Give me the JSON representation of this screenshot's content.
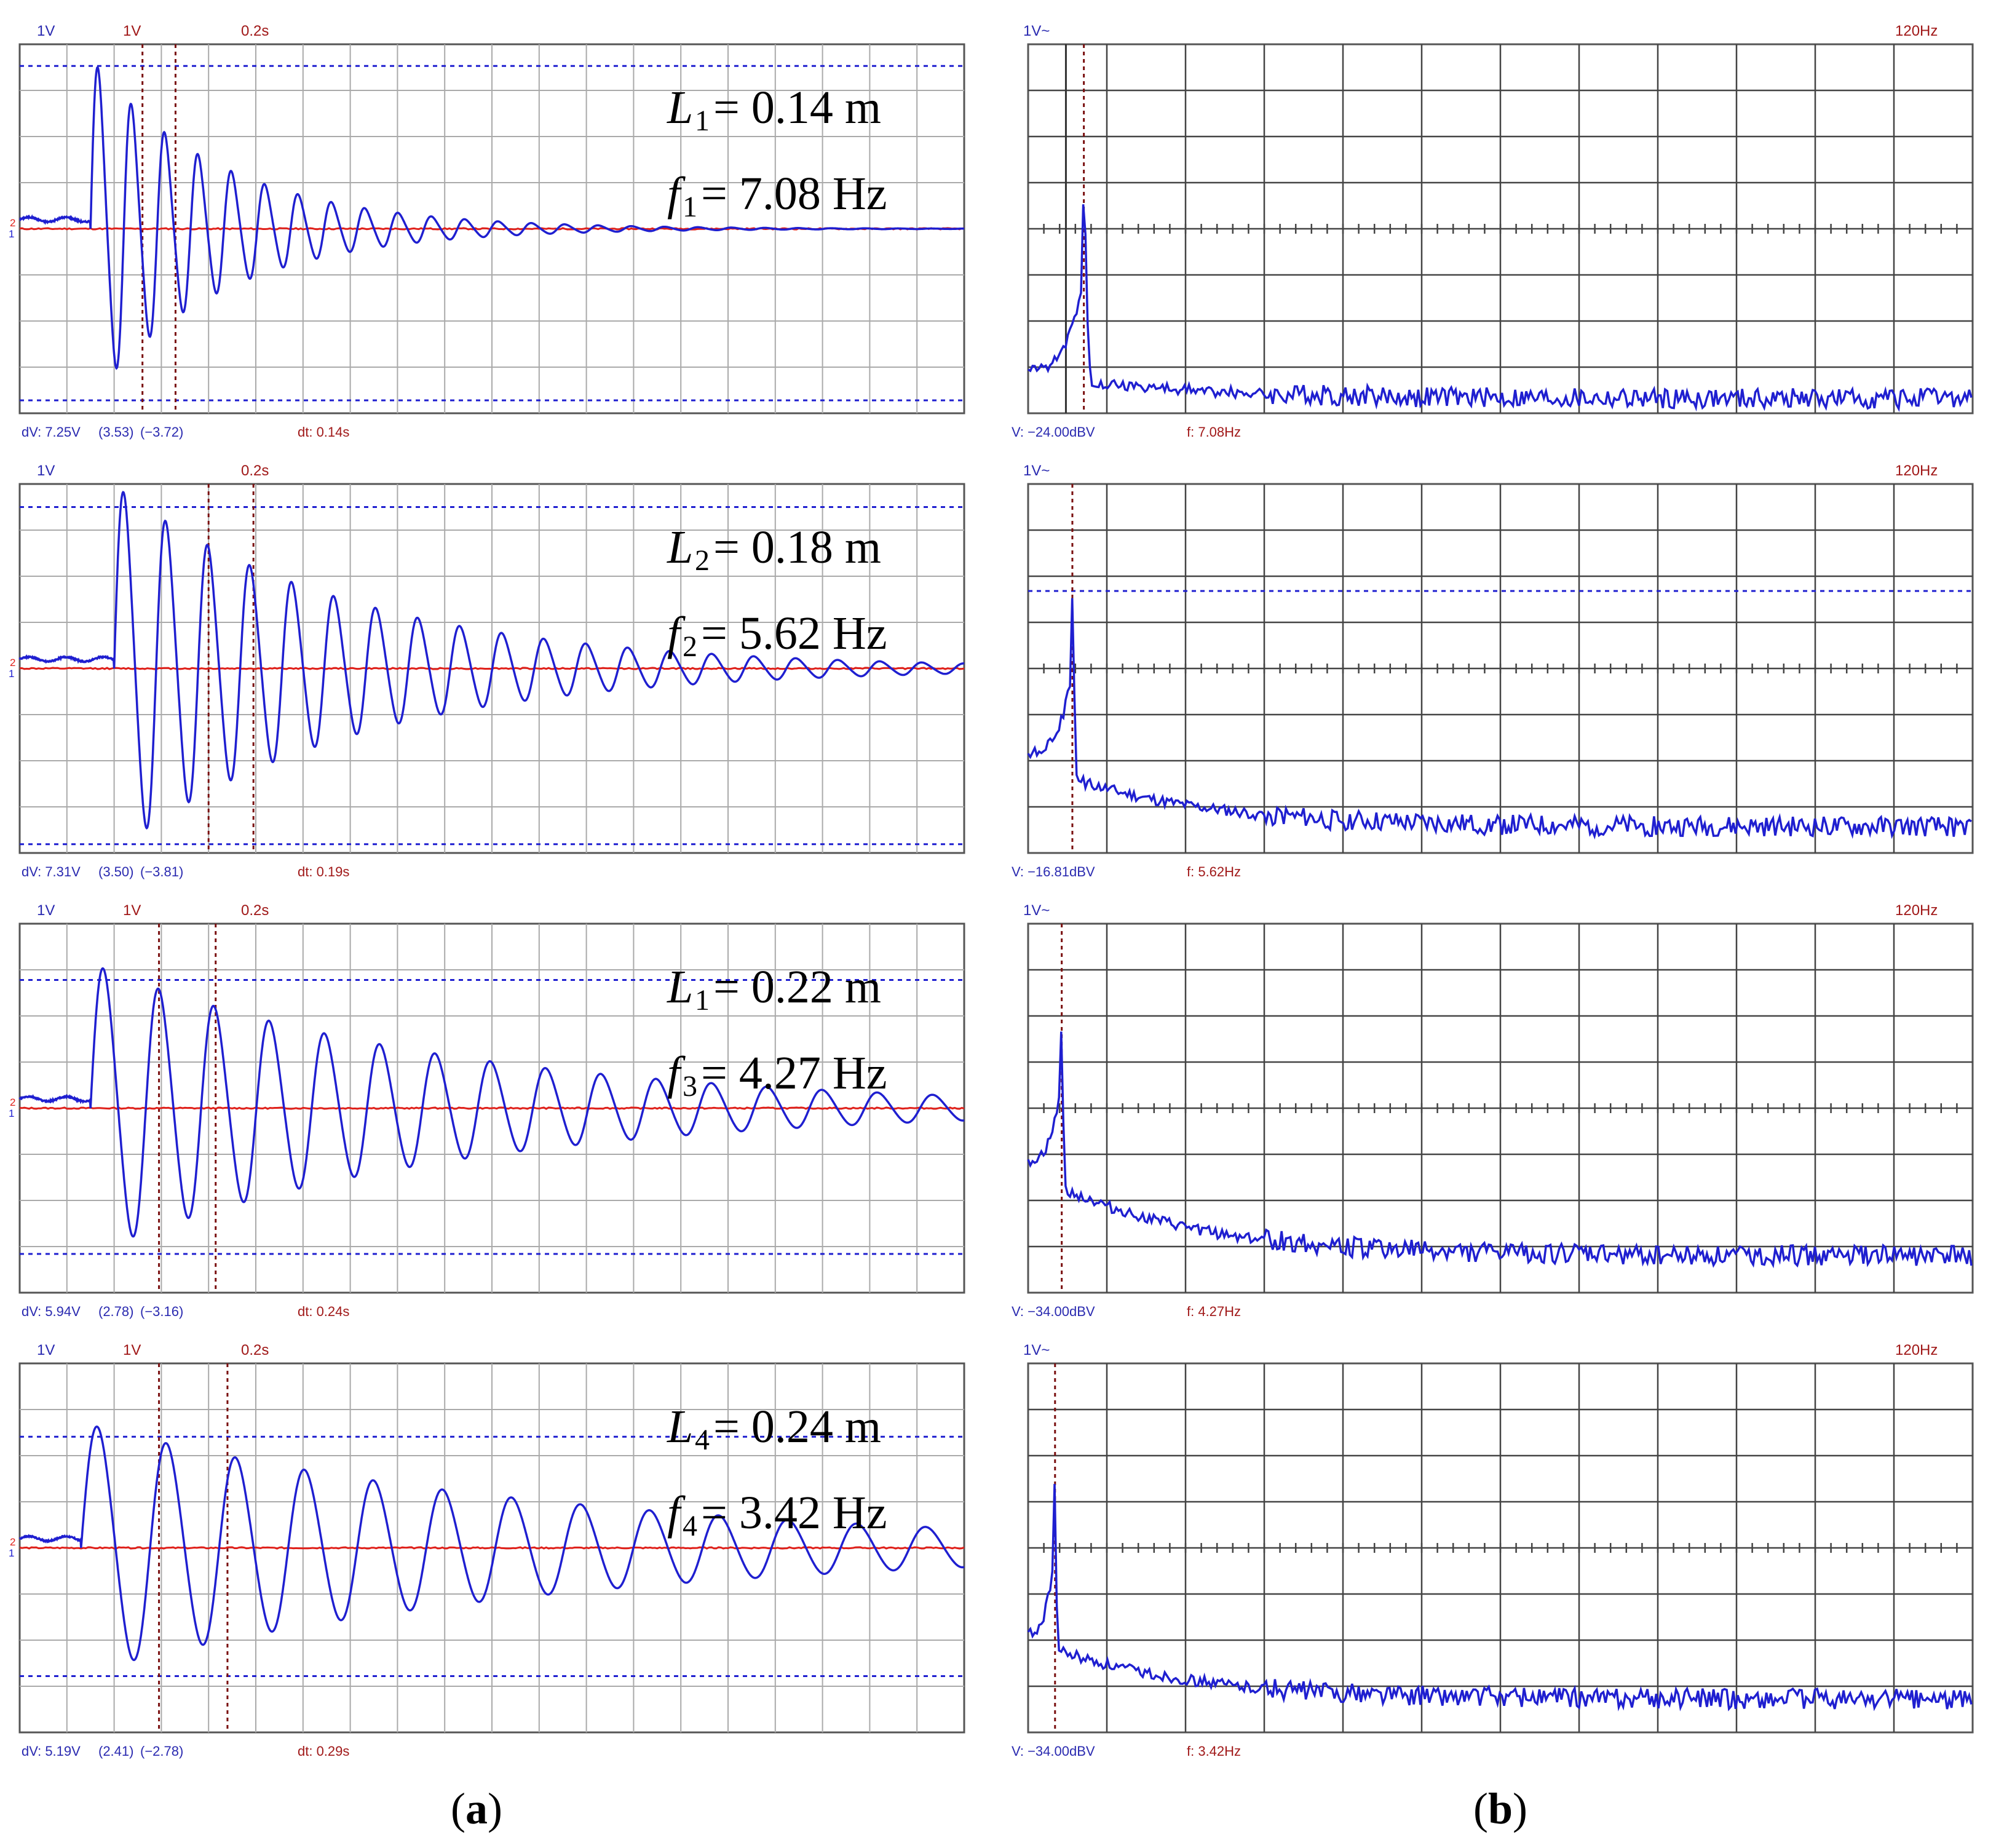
{
  "figure": {
    "caption_a": "a",
    "caption_b": "b",
    "caption_open": "(",
    "caption_close": ")"
  },
  "colors": {
    "signal": "#1f1fd0",
    "reference": "#e0201a",
    "grid": "#aaaaaa",
    "frame": "#555555",
    "cursor": "#7a1010",
    "label_blue": "#2a2ab0",
    "label_red": "#a01818"
  },
  "chart_data": [
    {
      "id": "a1",
      "type": "line",
      "panel": "time",
      "ch1_scale": "1V",
      "ch2_scale": "1V",
      "timebase": "0.2s",
      "readout_dv": "dV: 7.25V",
      "readout_pos": "(3.53)",
      "readout_neg": "(−3.72)",
      "readout_dt": "dt: 0.14s",
      "label_L": "L",
      "L_sub": "1",
      "L_value": "= 0.14 m",
      "label_f": "f",
      "f_sub": "1",
      "f_value": "= 7.08 Hz",
      "trace": {
        "onset_s": 0.3,
        "freq_hz": 7.08,
        "amp_v": 3.6,
        "decay_s": 0.55,
        "skew": 0.12
      },
      "cursors_s": [
        0.52,
        0.66
      ],
      "levels_v": [
        3.53,
        -3.72
      ],
      "xlim": [
        0,
        4
      ],
      "ylim": [
        -4,
        4
      ],
      "ch1_marker": "1",
      "ch2_marker": "2"
    },
    {
      "id": "a2",
      "type": "line",
      "panel": "time",
      "ch1_scale": "1V",
      "ch2_scale": "",
      "timebase": "0.2s",
      "readout_dv": "dV: 7.31V",
      "readout_pos": "(3.50)",
      "readout_neg": "(−3.81)",
      "readout_dt": "dt: 0.19s",
      "label_L": "L",
      "L_sub": "2",
      "L_value": "= 0.18 m",
      "label_f": "f",
      "f_sub": "2",
      "f_value": "= 5.62 Hz",
      "trace": {
        "onset_s": 0.4,
        "freq_hz": 5.62,
        "amp_v": 3.9,
        "decay_s": 1.0,
        "skew": 0.1
      },
      "cursors_s": [
        0.8,
        0.99
      ],
      "levels_v": [
        3.5,
        -3.81
      ],
      "xlim": [
        0,
        4
      ],
      "ylim": [
        -4,
        4
      ],
      "ch1_marker": "1",
      "ch2_marker": "2"
    },
    {
      "id": "a3",
      "type": "line",
      "panel": "time",
      "ch1_scale": "1V",
      "ch2_scale": "1V",
      "timebase": "0.2s",
      "readout_dv": "dV: 5.94V",
      "readout_pos": "(2.78)",
      "readout_neg": "(−3.16)",
      "readout_dt": "dt: 0.24s",
      "label_L": "L",
      "L_sub": "1",
      "L_value": "= 0.22 m",
      "label_f": "f",
      "f_sub": "3",
      "f_value": "= 4.27 Hz",
      "trace": {
        "onset_s": 0.3,
        "freq_hz": 4.27,
        "amp_v": 3.1,
        "decay_s": 1.5,
        "skew": 0.08
      },
      "cursors_s": [
        0.59,
        0.83
      ],
      "levels_v": [
        2.78,
        -3.16
      ],
      "xlim": [
        0,
        4
      ],
      "ylim": [
        -4,
        4
      ],
      "ch1_marker": "1",
      "ch2_marker": "2"
    },
    {
      "id": "a4",
      "type": "line",
      "panel": "time",
      "ch1_scale": "1V",
      "ch2_scale": "1V",
      "timebase": "0.2s",
      "readout_dv": "dV: 5.19V",
      "readout_pos": "(2.41)",
      "readout_neg": "(−2.78)",
      "readout_dt": "dt: 0.29s",
      "label_L": "L",
      "L_sub": "4",
      "L_value": "= 0.24 m",
      "label_f": "f",
      "f_sub": "4",
      "f_value": "= 3.42 Hz",
      "trace": {
        "onset_s": 0.26,
        "freq_hz": 3.42,
        "amp_v": 2.7,
        "decay_s": 2.0,
        "skew": 0.06
      },
      "cursors_s": [
        0.59,
        0.88
      ],
      "levels_v": [
        2.41,
        -2.78
      ],
      "xlim": [
        0,
        4
      ],
      "ylim": [
        -4,
        4
      ],
      "ch1_marker": "1",
      "ch2_marker": "2"
    },
    {
      "id": "b1",
      "type": "line",
      "panel": "spectrum",
      "scale_label": "1V~",
      "freq_span": "120Hz",
      "readout_v": "V: −24.00dBV",
      "readout_f": "f: 7.08Hz",
      "peak_hz": 7.08,
      "peak_level": 0.58,
      "start_level": 0.12,
      "floor_level": 0.04,
      "cursor_hz": [
        4.8,
        7.08
      ],
      "level_line": null,
      "xlim": [
        0,
        120
      ],
      "ylim": [
        0,
        1
      ]
    },
    {
      "id": "b2",
      "type": "line",
      "panel": "spectrum",
      "scale_label": "1V~",
      "freq_span": "120Hz",
      "readout_v": "V: −16.81dBV",
      "readout_f": "f: 5.62Hz",
      "peak_hz": 5.62,
      "peak_level": 0.7,
      "start_level": 0.27,
      "floor_level": 0.07,
      "cursor_hz": [
        5.62
      ],
      "level_line": 0.71,
      "xlim": [
        0,
        120
      ],
      "ylim": [
        0,
        1
      ]
    },
    {
      "id": "b3",
      "type": "line",
      "panel": "spectrum",
      "scale_label": "1V~",
      "freq_span": "120Hz",
      "readout_v": "V: −34.00dBV",
      "readout_f": "f: 4.27Hz",
      "peak_hz": 4.27,
      "peak_level": 0.77,
      "start_level": 0.36,
      "floor_level": 0.1,
      "cursor_hz": [
        4.27
      ],
      "level_line": null,
      "xlim": [
        0,
        120
      ],
      "ylim": [
        0,
        1
      ]
    },
    {
      "id": "b4",
      "type": "line",
      "panel": "spectrum",
      "scale_label": "1V~",
      "freq_span": "120Hz",
      "readout_v": "V: −34.00dBV",
      "readout_f": "f: 3.42Hz",
      "peak_hz": 3.42,
      "peak_level": 0.73,
      "start_level": 0.27,
      "floor_level": 0.09,
      "cursor_hz": [
        3.42
      ],
      "level_line": null,
      "xlim": [
        0,
        120
      ],
      "ylim": [
        0,
        1
      ]
    }
  ]
}
